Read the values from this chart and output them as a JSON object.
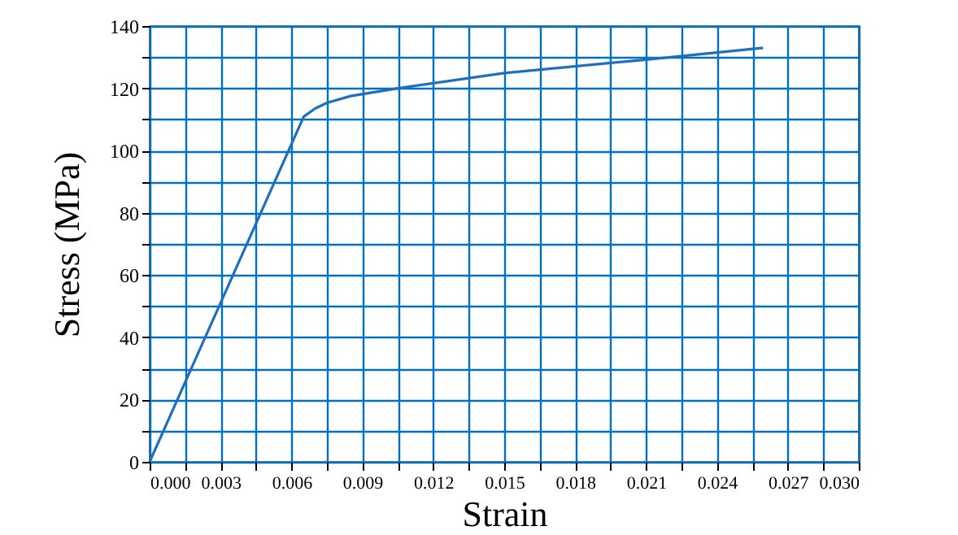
{
  "chart_data": {
    "type": "line",
    "xlabel": "Strain",
    "ylabel": "Stress (MPa)",
    "x": [
      0,
      0.00652,
      0.007,
      0.0075,
      0.0085,
      0.0105,
      0.015,
      0.021,
      0.02595
    ],
    "series": [
      {
        "color": "#1f6fbf",
        "values": [
          0,
          110.9,
          113.5,
          115.3,
          117.5,
          120,
          124.9,
          129.2,
          133
        ]
      }
    ],
    "xlim": [
      0,
      0.03
    ],
    "ylim": [
      0,
      140
    ],
    "xticks": [
      {
        "value": 0,
        "label": "0.000"
      },
      {
        "value": 0.0015,
        "label": null
      },
      0.003,
      {
        "value": 0.0045,
        "label": null
      },
      0.006,
      {
        "value": 0.0075,
        "label": null
      },
      0.009,
      {
        "value": 0.0105,
        "label": null
      },
      0.012,
      {
        "value": 0.0135,
        "label": null
      },
      0.015,
      {
        "value": 0.0165,
        "label": null
      },
      0.018,
      {
        "value": 0.0195,
        "label": null
      },
      0.021,
      {
        "value": 0.0225,
        "label": null
      },
      0.024,
      {
        "value": 0.0255,
        "label": null
      },
      0.027,
      {
        "value": 0.0285,
        "label": null
      },
      {
        "value": 0.03,
        "label": "0.030"
      }
    ],
    "yticks": [
      0,
      {
        "value": 10,
        "label": null
      },
      20,
      {
        "value": 30,
        "label": null
      },
      40,
      {
        "value": 50,
        "label": null
      },
      60,
      {
        "value": 70,
        "label": null
      },
      80,
      {
        "value": 90,
        "label": null
      },
      100,
      {
        "value": 110,
        "label": null
      },
      120,
      {
        "value": 130,
        "label": null
      },
      140
    ],
    "grid": true,
    "marker": "none",
    "line_style": "solid"
  }
}
